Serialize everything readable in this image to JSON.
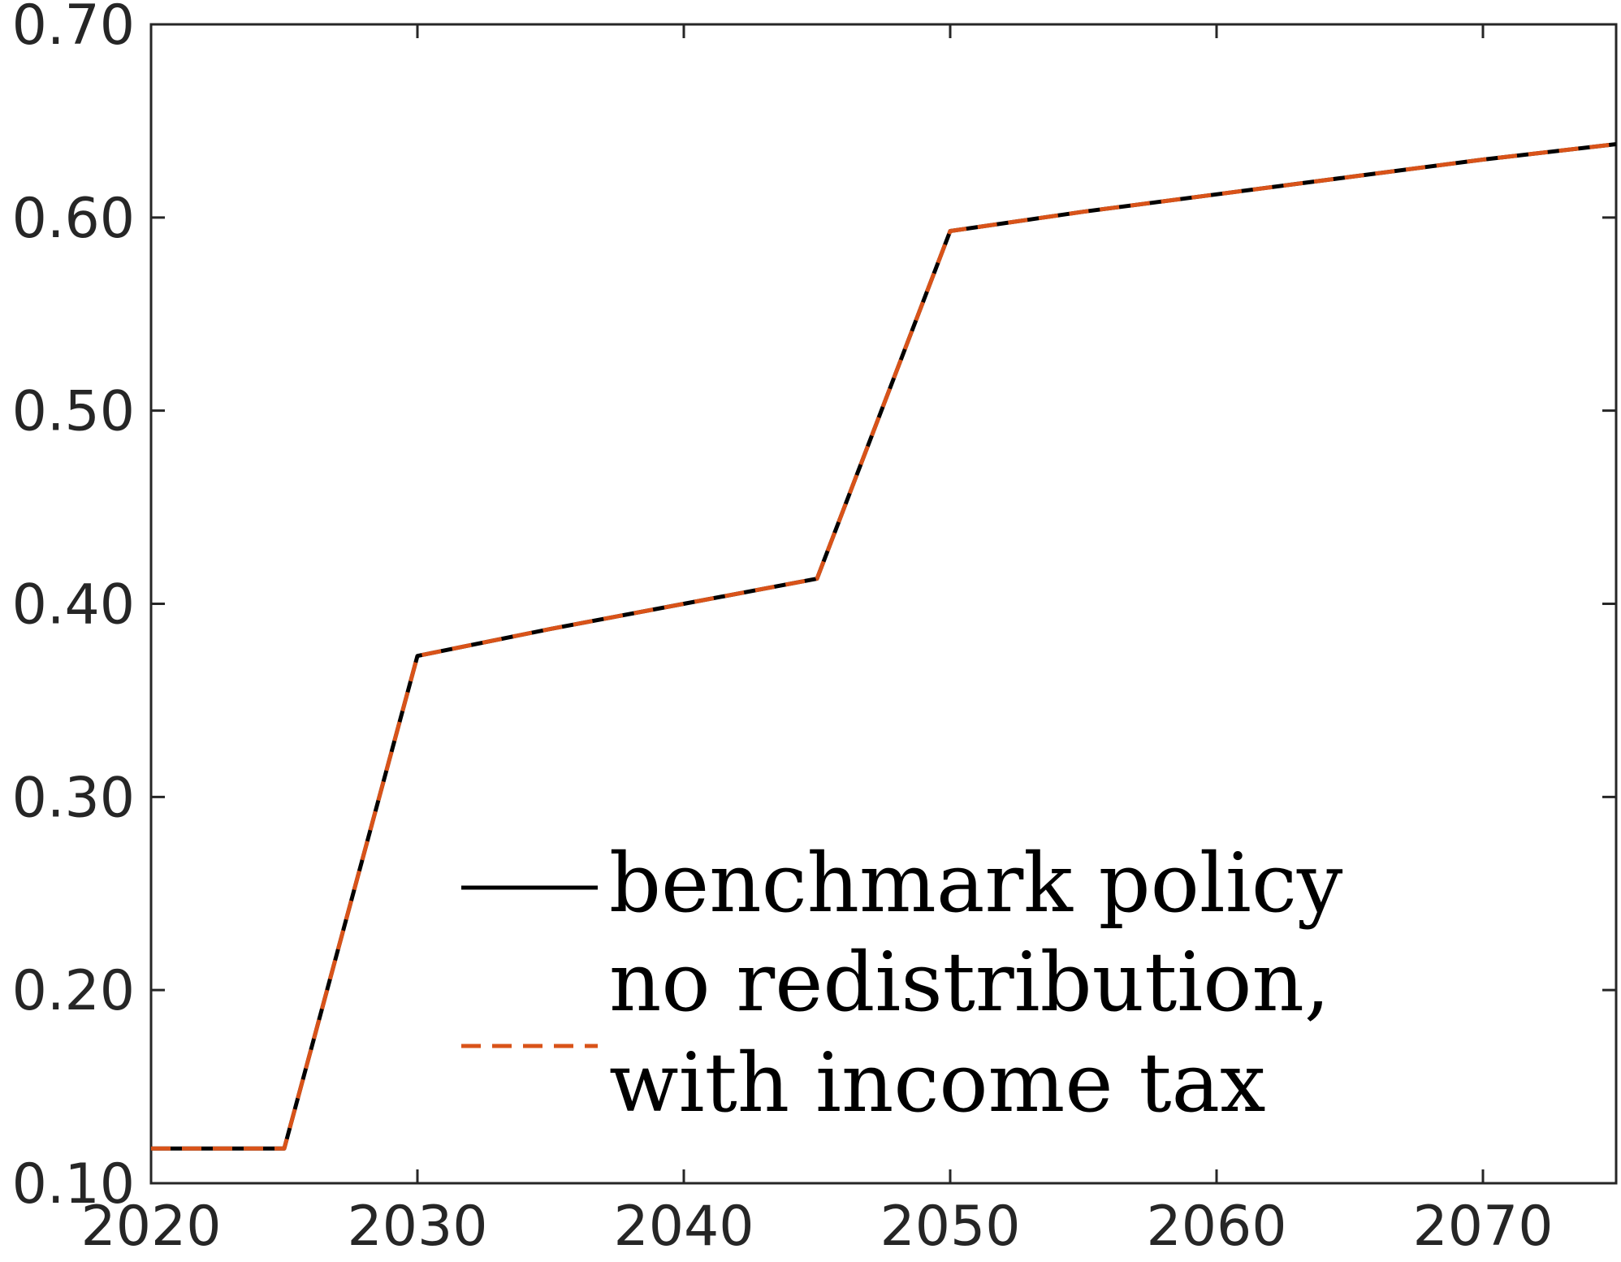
{
  "chart_data": {
    "type": "line",
    "title": "",
    "xlabel": "",
    "ylabel": "",
    "xlim": [
      2020,
      2075
    ],
    "ylim": [
      0.1,
      0.7
    ],
    "x_ticks": [
      "2020",
      "2030",
      "2040",
      "2050",
      "2060",
      "2070"
    ],
    "y_ticks": [
      "0.10",
      "0.20",
      "0.30",
      "0.40",
      "0.50",
      "0.60",
      "0.70"
    ],
    "grid": false,
    "legend_position": "bottom-center",
    "x": [
      2020,
      2025,
      2030,
      2035,
      2040,
      2045,
      2050,
      2055,
      2060,
      2065,
      2070,
      2075
    ],
    "series": [
      {
        "name": "benchmark policy",
        "color": "#000000",
        "style": "solid",
        "values": [
          0.118,
          0.118,
          0.373,
          0.387,
          0.4,
          0.413,
          0.593,
          0.603,
          0.612,
          0.621,
          0.63,
          0.638
        ]
      },
      {
        "name": "no redistribution, with income tax",
        "name_lines": [
          "no redistribution,",
          "with income tax"
        ],
        "color": "#D95319",
        "style": "dashed",
        "values": [
          0.118,
          0.118,
          0.373,
          0.387,
          0.4,
          0.413,
          0.593,
          0.603,
          0.612,
          0.621,
          0.63,
          0.638
        ]
      }
    ]
  }
}
